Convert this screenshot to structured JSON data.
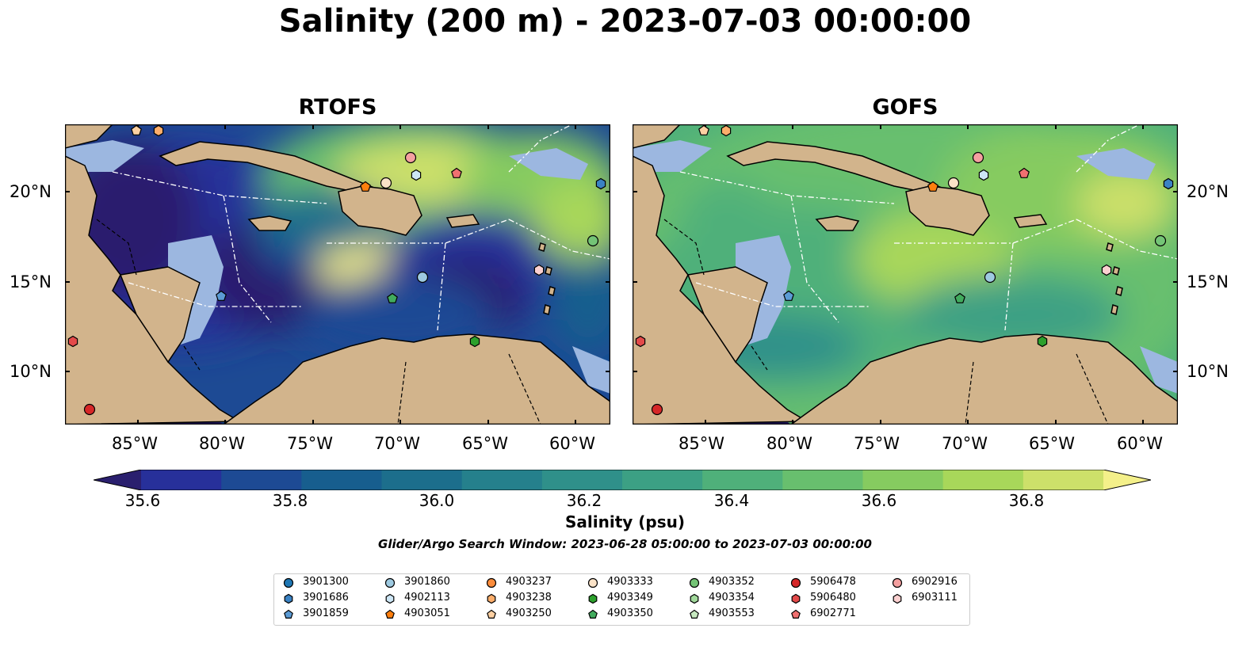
{
  "title": "Salinity (200 m) - 2023-07-03 00:00:00",
  "panels": [
    {
      "title": "RTOFS"
    },
    {
      "title": "GOFS"
    }
  ],
  "x_ticks": [
    "85°W",
    "80°W",
    "75°W",
    "70°W",
    "65°W",
    "60°W"
  ],
  "y_ticks_left": [
    "20°N",
    "15°N",
    "10°N"
  ],
  "y_ticks_right": [
    "20°N",
    "15°N",
    "10°N"
  ],
  "colorbar": {
    "label": "Salinity (psu)",
    "ticks": [
      "35.6",
      "35.8",
      "36.0",
      "36.2",
      "36.4",
      "36.6",
      "36.8"
    ],
    "colors": [
      "#2a1f6e",
      "#27309a",
      "#1d4a94",
      "#175e8e",
      "#1c6e8c",
      "#25808c",
      "#2f908a",
      "#3ca084",
      "#4fb07a",
      "#68bf6e",
      "#86cb60",
      "#a8d75a",
      "#cde06a",
      "#f4f08a"
    ]
  },
  "search_window": "Glider/Argo Search Window: 2023-06-28 05:00:00 to 2023-07-03 00:00:00",
  "legend": {
    "items": [
      {
        "id": "3901300",
        "shape": "circle",
        "color": "#1f77b4"
      },
      {
        "id": "3901686",
        "shape": "hexagon",
        "color": "#3a82c4"
      },
      {
        "id": "3901859",
        "shape": "pentagon",
        "color": "#5b9bd5"
      },
      {
        "id": "3901860",
        "shape": "circle",
        "color": "#9ecae1"
      },
      {
        "id": "4902113",
        "shape": "hexagon",
        "color": "#cde6f5"
      },
      {
        "id": "4903051",
        "shape": "pentagon",
        "color": "#ff7f0e"
      },
      {
        "id": "4903237",
        "shape": "circle",
        "color": "#fd8d3c"
      },
      {
        "id": "4903238",
        "shape": "hexagon",
        "color": "#fdae6b"
      },
      {
        "id": "4903250",
        "shape": "pentagon",
        "color": "#fdd0a2"
      },
      {
        "id": "4903333",
        "shape": "circle",
        "color": "#fbe3c8"
      },
      {
        "id": "4903349",
        "shape": "hexagon",
        "color": "#2ca02c"
      },
      {
        "id": "4903350",
        "shape": "pentagon",
        "color": "#41ab5d"
      },
      {
        "id": "4903352",
        "shape": "circle",
        "color": "#74c476"
      },
      {
        "id": "4903354",
        "shape": "hexagon",
        "color": "#a1d99b"
      },
      {
        "id": "4903553",
        "shape": "pentagon",
        "color": "#c7e9c0"
      },
      {
        "id": "5906478",
        "shape": "circle",
        "color": "#d62728"
      },
      {
        "id": "5906480",
        "shape": "hexagon",
        "color": "#e34a4a"
      },
      {
        "id": "6902771",
        "shape": "pentagon",
        "color": "#f07070"
      },
      {
        "id": "6902916",
        "shape": "circle",
        "color": "#f4a0a0"
      },
      {
        "id": "6903111",
        "shape": "hexagon",
        "color": "#fbd0d0"
      }
    ]
  }
}
